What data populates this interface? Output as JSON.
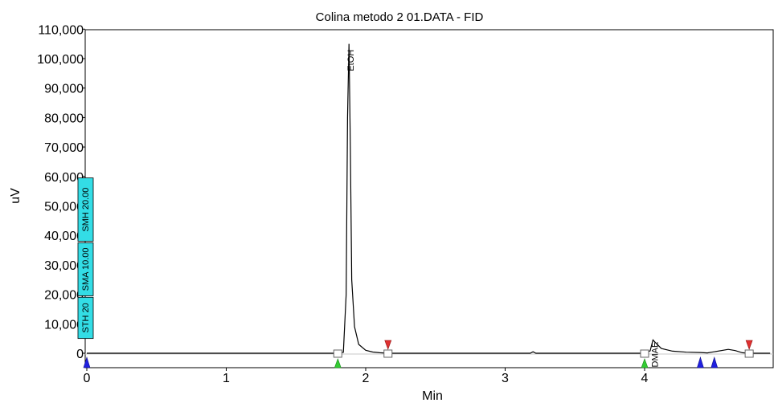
{
  "chart_data": {
    "type": "line",
    "title": "Colina metodo 2 01.DATA - FID",
    "xlabel": "Min",
    "ylabel": "uV",
    "xlim": [
      0,
      4.9
    ],
    "ylim": [
      -5800,
      110000
    ],
    "x_ticks": [
      0,
      1,
      2,
      3,
      4
    ],
    "x_tick_labels": [
      "0",
      "1",
      "2",
      "3",
      "4"
    ],
    "y_ticks": [
      0,
      10000,
      20000,
      30000,
      40000,
      50000,
      60000,
      70000,
      80000,
      90000,
      100000,
      110000
    ],
    "y_tick_labels": [
      "0",
      "10,000",
      "20,000",
      "30,000",
      "40,000",
      "50,000",
      "60,000",
      "70,000",
      "80,000",
      "90,000",
      "100,000",
      "110,000"
    ],
    "grid": false,
    "series": [
      {
        "x": [
          0,
          0.5,
          1.0,
          1.5,
          1.8,
          1.84,
          1.86,
          1.87,
          1.88,
          1.89,
          1.9,
          1.92,
          1.95,
          2.0,
          2.05,
          2.1,
          2.16,
          2.5,
          3.0,
          3.18,
          3.2,
          3.22,
          3.5,
          4.0,
          4.04,
          4.06,
          4.08,
          4.12,
          4.2,
          4.3,
          4.4,
          4.45,
          4.6,
          4.65,
          4.7,
          4.75,
          4.9
        ],
        "y": [
          0,
          0,
          0,
          0,
          0,
          300,
          20000,
          80000,
          105000,
          70000,
          25000,
          9000,
          3000,
          1000,
          400,
          150,
          0,
          0,
          0,
          0,
          500,
          0,
          0,
          0,
          800,
          4500,
          3500,
          1600,
          700,
          350,
          250,
          100,
          1300,
          900,
          150,
          0,
          0
        ]
      }
    ],
    "peaks": [
      {
        "label": "EtOH",
        "x": 1.88,
        "y": 105000
      },
      {
        "label": "DMAE",
        "x": 4.06,
        "y": 4500
      }
    ],
    "baseline_markers": [
      {
        "x": 1.8,
        "y": 0
      },
      {
        "x": 2.16,
        "y": 0
      },
      {
        "x": 4.0,
        "y": 0
      },
      {
        "x": 4.75,
        "y": 0
      }
    ],
    "integration_events": {
      "start_green": [
        1.8,
        4.0
      ],
      "end_red": [
        2.16,
        4.75
      ],
      "blue": [
        0,
        4.4,
        4.5
      ]
    },
    "timed_events": [
      {
        "label": "STH 20",
        "y_from": 5000,
        "y_to": 19000
      },
      {
        "label": "SMA 10.00",
        "y_from": 19500,
        "y_to": 37500
      },
      {
        "label": "SMH 20.00",
        "y_from": 38000,
        "y_to": 59500
      }
    ],
    "colors": {
      "trace": "#000000",
      "start_marker": "#33cc33",
      "end_marker": "#e03030",
      "blue_marker": "#2020e0",
      "event_box": "#33dde6",
      "baseline": "#c8c8c8"
    }
  }
}
